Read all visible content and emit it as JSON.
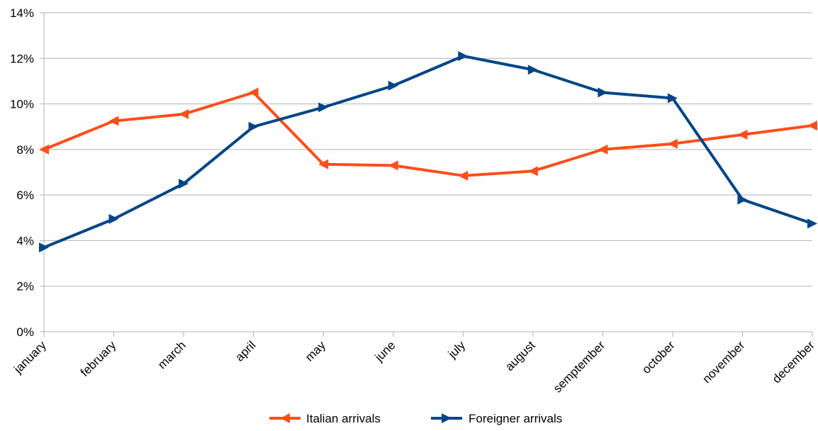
{
  "chart_data": {
    "type": "line",
    "title": "",
    "xlabel": "",
    "ylabel": "",
    "categories": [
      "january",
      "february",
      "march",
      "april",
      "may",
      "june",
      "july",
      "august",
      "semptember",
      "october",
      "november",
      "december"
    ],
    "ylim": [
      0,
      14
    ],
    "yticks": [
      "0%",
      "2%",
      "4%",
      "6%",
      "8%",
      "10%",
      "12%",
      "14%"
    ],
    "grid": true,
    "legend_position": "bottom",
    "series": [
      {
        "name": "Italian arrivals",
        "color": "#ff4e1a",
        "marker": "triangle-left",
        "values": [
          8.0,
          9.25,
          9.55,
          10.5,
          7.35,
          7.3,
          6.85,
          7.05,
          8.0,
          8.25,
          8.65,
          9.05
        ]
      },
      {
        "name": "Foreigner arrivals",
        "color": "#004586",
        "marker": "triangle-right",
        "values": [
          3.7,
          4.95,
          6.5,
          9.0,
          9.85,
          10.8,
          12.1,
          11.5,
          10.5,
          10.25,
          5.8,
          4.75
        ]
      }
    ]
  }
}
